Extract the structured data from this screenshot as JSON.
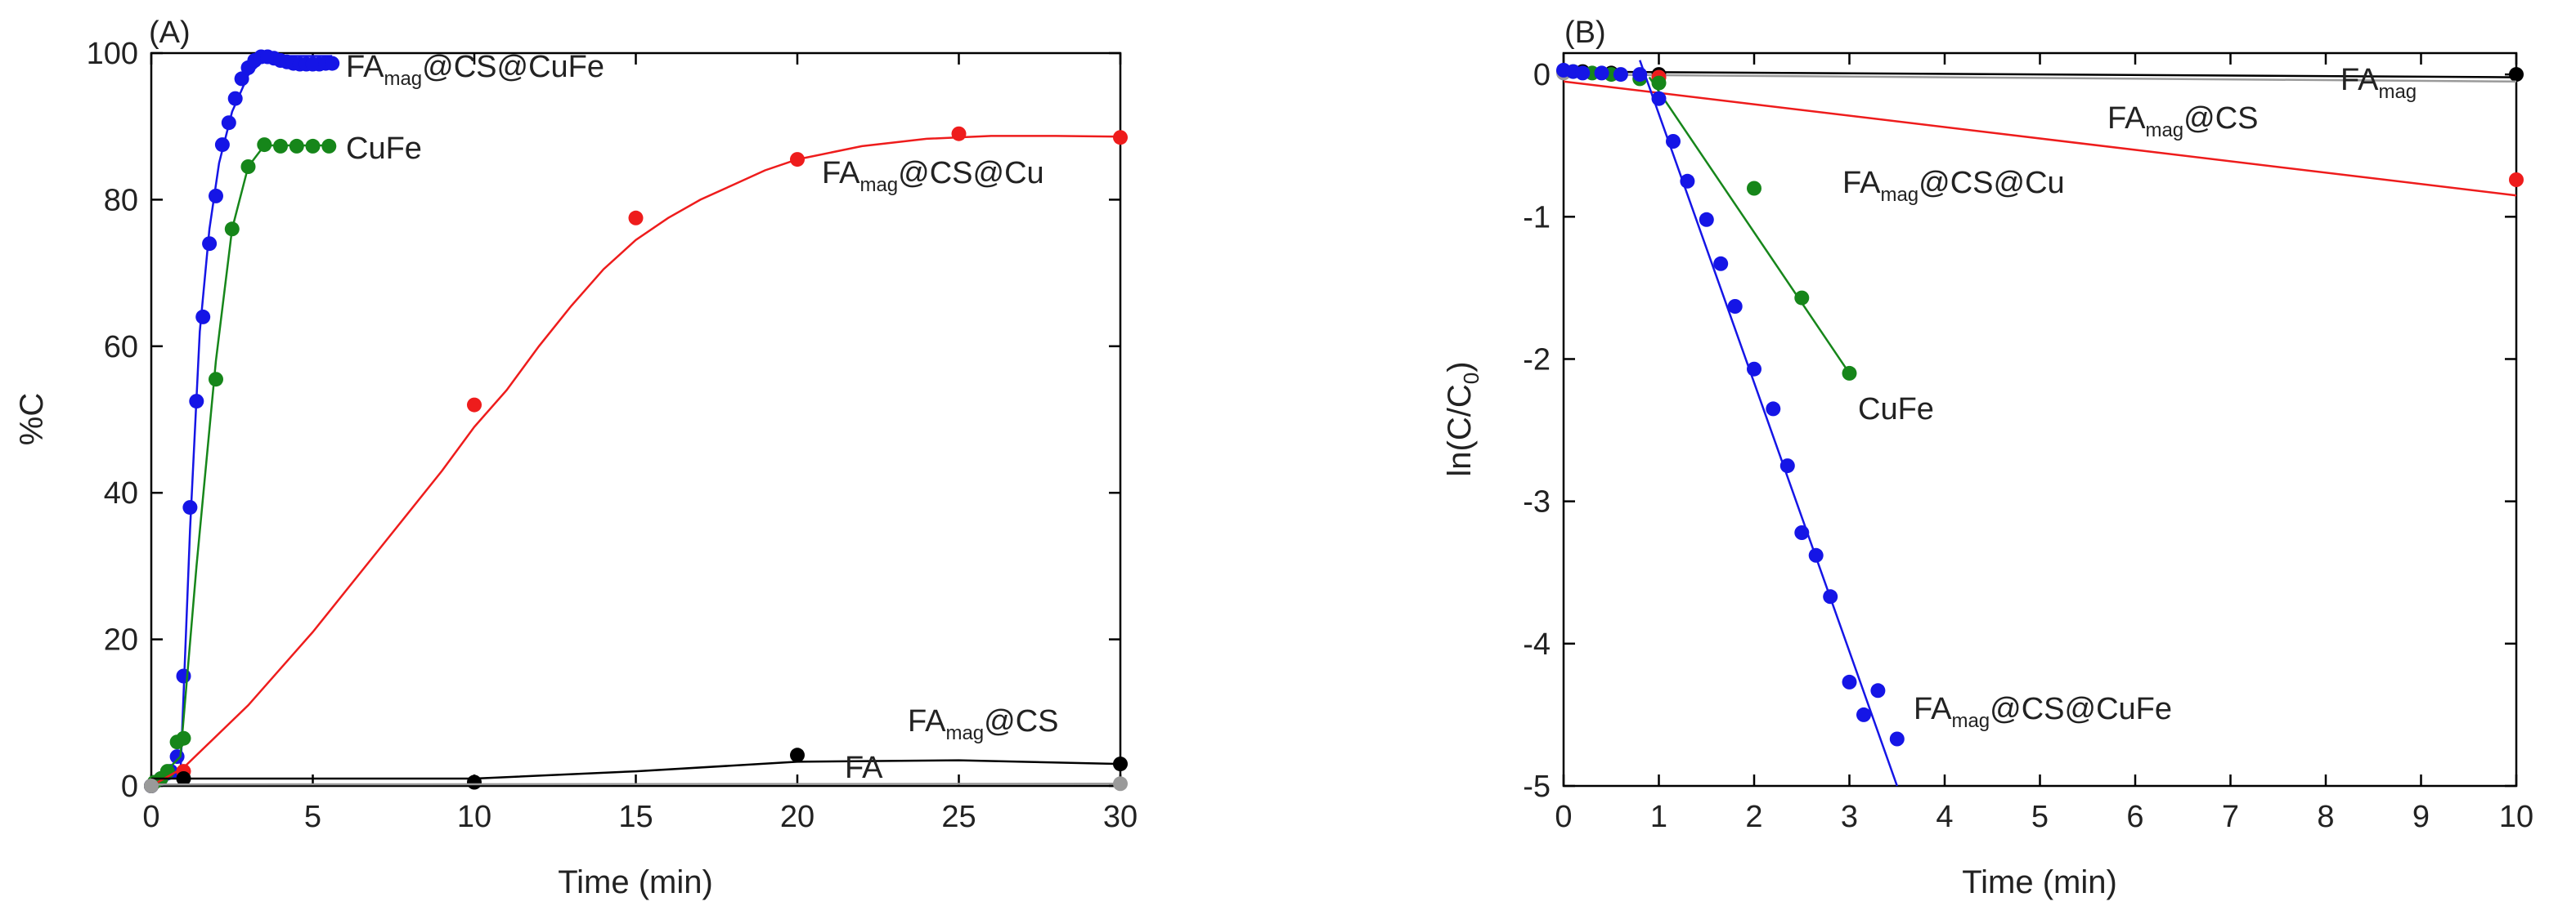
{
  "chart_data": [
    {
      "type": "scatter",
      "panel_label": "(A)",
      "xlabel": "Time (min)",
      "ylabel": "%C",
      "xlim": [
        0,
        30
      ],
      "ylim": [
        0,
        100
      ],
      "xticks": [
        0,
        5,
        10,
        15,
        20,
        25,
        30
      ],
      "yticks": [
        0,
        20,
        40,
        60,
        80,
        100
      ],
      "grid": false,
      "series": [
        {
          "name": "FAmag@CS@CuFe",
          "label_main": "FA",
          "label_sub": "mag",
          "label_tail": "@CS@CuFe",
          "color": "#1515e6",
          "points": [
            [
              0,
              0
            ],
            [
              0.3,
              1
            ],
            [
              0.6,
              2
            ],
            [
              0.8,
              4
            ],
            [
              1.0,
              15
            ],
            [
              1.2,
              38
            ],
            [
              1.4,
              52.5
            ],
            [
              1.6,
              64
            ],
            [
              1.8,
              74
            ],
            [
              2.0,
              80.5
            ],
            [
              2.2,
              87.5
            ],
            [
              2.4,
              90.5
            ],
            [
              2.6,
              93.8
            ],
            [
              2.8,
              96.5
            ],
            [
              3.0,
              98
            ],
            [
              3.2,
              99
            ],
            [
              3.4,
              99.5
            ],
            [
              3.6,
              99.5
            ],
            [
              3.8,
              99.3
            ],
            [
              4.0,
              99
            ],
            [
              4.2,
              98.8
            ],
            [
              4.4,
              98.6
            ],
            [
              4.6,
              98.5
            ],
            [
              4.8,
              98.5
            ],
            [
              5.0,
              98.5
            ],
            [
              5.2,
              98.5
            ],
            [
              5.4,
              98.6
            ],
            [
              5.6,
              98.6
            ]
          ],
          "line": [
            [
              0,
              0
            ],
            [
              0.9,
              1.5
            ],
            [
              1.2,
              35
            ],
            [
              1.5,
              62
            ],
            [
              1.8,
              76
            ],
            [
              2.1,
              85
            ],
            [
              2.5,
              92
            ],
            [
              3.0,
              97
            ],
            [
              3.5,
              99.2
            ],
            [
              4.0,
              99.6
            ],
            [
              5.6,
              99.6
            ]
          ]
        },
        {
          "name": "CuFe",
          "label_main": "CuFe",
          "label_sub": "",
          "label_tail": "",
          "color": "#16861a",
          "points": [
            [
              0.1,
              0.5
            ],
            [
              0.3,
              1
            ],
            [
              0.5,
              2
            ],
            [
              0.8,
              6
            ],
            [
              1.0,
              6.5
            ],
            [
              2.0,
              55.5
            ],
            [
              2.5,
              76
            ],
            [
              3.0,
              84.5
            ],
            [
              3.5,
              87.5
            ],
            [
              4.0,
              87.3
            ],
            [
              4.5,
              87.3
            ],
            [
              5.0,
              87.3
            ],
            [
              5.5,
              87.3
            ]
          ],
          "line": [
            [
              0,
              0
            ],
            [
              0.9,
              4
            ],
            [
              1.4,
              30
            ],
            [
              2.0,
              58
            ],
            [
              2.5,
              76
            ],
            [
              3.0,
              84.5
            ],
            [
              3.5,
              87.4
            ],
            [
              5.5,
              87.4
            ]
          ]
        },
        {
          "name": "FAmag@CS@Cu",
          "label_main": "FA",
          "label_sub": "mag",
          "label_tail": "@CS@Cu",
          "color": "#ee1c1c",
          "points": [
            [
              1.0,
              2
            ],
            [
              10,
              52
            ],
            [
              15,
              77.5
            ],
            [
              20,
              85.5
            ],
            [
              25,
              89
            ],
            [
              30,
              88.5
            ]
          ],
          "line": [
            [
              0,
              0
            ],
            [
              1,
              2.5
            ],
            [
              3,
              11
            ],
            [
              5,
              21
            ],
            [
              7,
              32
            ],
            [
              9,
              43
            ],
            [
              10,
              49
            ],
            [
              11,
              54
            ],
            [
              12,
              60
            ],
            [
              13,
              65.5
            ],
            [
              14,
              70.5
            ],
            [
              15,
              74.5
            ],
            [
              16,
              77.5
            ],
            [
              17,
              80
            ],
            [
              18,
              82
            ],
            [
              19,
              84
            ],
            [
              20,
              85.5
            ],
            [
              22,
              87.3
            ],
            [
              24,
              88.3
            ],
            [
              26,
              88.7
            ],
            [
              28,
              88.7
            ],
            [
              30,
              88.6
            ]
          ]
        },
        {
          "name": "FAmag@CS",
          "label_main": "FA",
          "label_sub": "mag",
          "label_tail": "@CS",
          "color": "#000000",
          "points": [
            [
              0,
              0
            ],
            [
              1,
              1
            ],
            [
              10,
              0.5
            ],
            [
              20,
              4.2
            ],
            [
              30,
              3
            ]
          ],
          "line": [
            [
              0,
              1
            ],
            [
              10,
              1
            ],
            [
              15,
              2
            ],
            [
              20,
              3.3
            ],
            [
              25,
              3.5
            ],
            [
              30,
              3
            ]
          ]
        },
        {
          "name": "FA",
          "label_main": "FA",
          "label_sub": "",
          "label_tail": "",
          "color": "#9a9a9a",
          "points": [
            [
              0,
              0
            ],
            [
              30,
              0.3
            ]
          ],
          "line": [
            [
              0,
              0.2
            ],
            [
              30,
              0.3
            ]
          ]
        }
      ]
    },
    {
      "type": "scatter",
      "panel_label": "(B)",
      "xlabel": "Time (min)",
      "ylabel": "ln(C/C0)",
      "ylabel_main": "ln(C/C",
      "ylabel_sub": "0",
      "ylabel_tail": ")",
      "xlim": [
        0,
        10
      ],
      "ylim": [
        -5,
        0.15
      ],
      "xticks": [
        0,
        1,
        2,
        3,
        4,
        5,
        6,
        7,
        8,
        9,
        10
      ],
      "yticks": [
        0,
        -1,
        -2,
        -3,
        -4,
        -5
      ],
      "grid": false,
      "series": [
        {
          "name": "FAmag",
          "label_main": "FA",
          "label_sub": "mag",
          "label_tail": "",
          "color": "#000000",
          "points": [
            [
              0,
              0.02
            ],
            [
              0.2,
              0.02
            ],
            [
              0.5,
              0.01
            ],
            [
              1.0,
              0
            ],
            [
              10,
              0
            ]
          ],
          "line": [
            [
              0,
              0.02
            ],
            [
              10,
              -0.02
            ]
          ]
        },
        {
          "name": "FAmag@CS",
          "label_main": "FA",
          "label_sub": "mag",
          "label_tail": "@CS",
          "color": "#9a9a9a",
          "points": [
            [
              0,
              0.01
            ],
            [
              1.0,
              -0.02
            ]
          ],
          "line": [
            [
              0,
              0
            ],
            [
              10,
              -0.05
            ]
          ]
        },
        {
          "name": "FAmag@CS@Cu",
          "label_main": "FA",
          "label_sub": "mag",
          "label_tail": "@CS@Cu",
          "color": "#ee1c1c",
          "points": [
            [
              1.0,
              -0.02
            ],
            [
              10,
              -0.74
            ]
          ],
          "line": [
            [
              0,
              -0.05
            ],
            [
              10,
              -0.85
            ]
          ]
        },
        {
          "name": "CuFe",
          "label_main": "CuFe",
          "label_sub": "",
          "label_tail": "",
          "color": "#16861a",
          "points": [
            [
              0.1,
              0.02
            ],
            [
              0.3,
              0.01
            ],
            [
              0.5,
              0
            ],
            [
              0.8,
              -0.03
            ],
            [
              1.0,
              -0.06
            ],
            [
              2.0,
              -0.8
            ],
            [
              2.5,
              -1.57
            ],
            [
              3.0,
              -2.1
            ]
          ],
          "line": [
            [
              0.9,
              -0.02
            ],
            [
              3.0,
              -2.1
            ]
          ]
        },
        {
          "name": "FAmag@CS@CuFe",
          "label_main": "FA",
          "label_sub": "mag",
          "label_tail": "@CS@CuFe",
          "color": "#1515e6",
          "points": [
            [
              0,
              0.03
            ],
            [
              0.1,
              0.02
            ],
            [
              0.2,
              0.01
            ],
            [
              0.4,
              0.01
            ],
            [
              0.6,
              0
            ],
            [
              0.8,
              0
            ],
            [
              1.0,
              -0.17
            ],
            [
              1.15,
              -0.47
            ],
            [
              1.3,
              -0.75
            ],
            [
              1.5,
              -1.02
            ],
            [
              1.65,
              -1.33
            ],
            [
              1.8,
              -1.63
            ],
            [
              2.0,
              -2.07
            ],
            [
              2.2,
              -2.35
            ],
            [
              2.35,
              -2.75
            ],
            [
              2.5,
              -3.22
            ],
            [
              2.65,
              -3.38
            ],
            [
              2.8,
              -3.67
            ],
            [
              3.0,
              -4.27
            ],
            [
              3.15,
              -4.5
            ],
            [
              3.3,
              -4.33
            ],
            [
              3.5,
              -4.67
            ]
          ],
          "line": [
            [
              0.8,
              0.1
            ],
            [
              3.5,
              -5.0
            ]
          ]
        }
      ]
    }
  ]
}
